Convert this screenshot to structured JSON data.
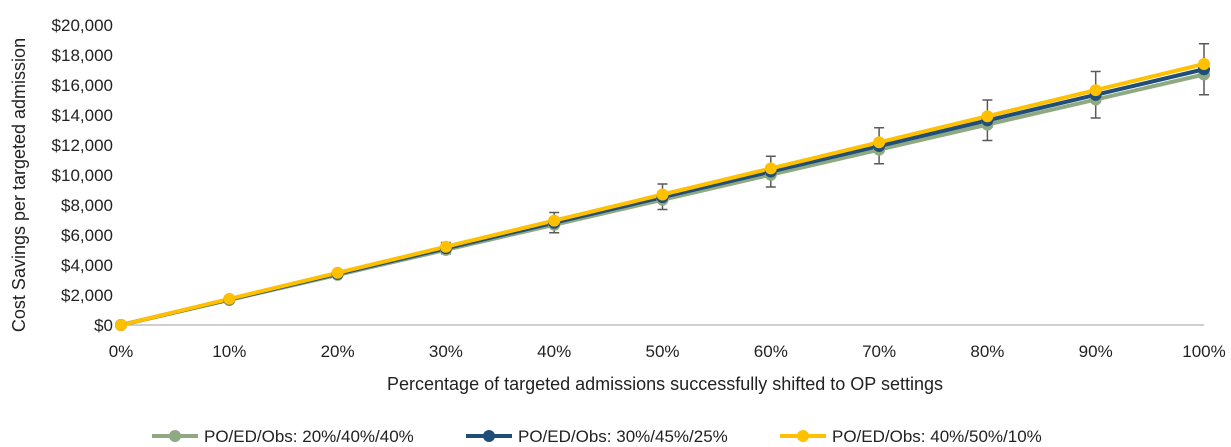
{
  "chart_data": {
    "type": "line",
    "title": "",
    "xlabel": "Percentage of targeted admissions successfully shifted to OP settings",
    "ylabel": "Cost Savings per targeted admission",
    "categories": [
      "0%",
      "10%",
      "20%",
      "30%",
      "40%",
      "50%",
      "60%",
      "70%",
      "80%",
      "90%",
      "100%"
    ],
    "y_ticks": [
      "$0",
      "$2,000",
      "$4,000",
      "$6,000",
      "$8,000",
      "$10,000",
      "$12,000",
      "$14,000",
      "$16,000",
      "$18,000",
      "$20,000"
    ],
    "ylim": [
      0,
      20000
    ],
    "grid": false,
    "legend_position": "bottom",
    "series": [
      {
        "name": "PO/ED/Obs: 20%/40%/40%",
        "color": "#8faa82",
        "values": [
          0,
          1670,
          3340,
          5010,
          6680,
          8350,
          10020,
          11690,
          13360,
          15030,
          16700
        ]
      },
      {
        "name": "PO/ED/Obs: 30%/45%/25%",
        "color": "#1f4e79",
        "values": [
          0,
          1705,
          3410,
          5115,
          6820,
          8525,
          10230,
          11935,
          13640,
          15345,
          17050
        ]
      },
      {
        "name": "PO/ED/Obs: 40%/50%/10%",
        "color": "#ffc000",
        "values": [
          0,
          1740,
          3480,
          5220,
          6960,
          8700,
          10440,
          12180,
          13920,
          15660,
          17400
        ]
      }
    ],
    "error_bars": {
      "series_index": 2,
      "lower": [
        0,
        1600,
        3200,
        4750,
        6150,
        7700,
        9200,
        10750,
        12300,
        13800,
        15350
      ],
      "upper": [
        0,
        1850,
        3650,
        5500,
        7500,
        9400,
        11250,
        13150,
        15000,
        16900,
        18750
      ],
      "color": "#595959"
    }
  }
}
